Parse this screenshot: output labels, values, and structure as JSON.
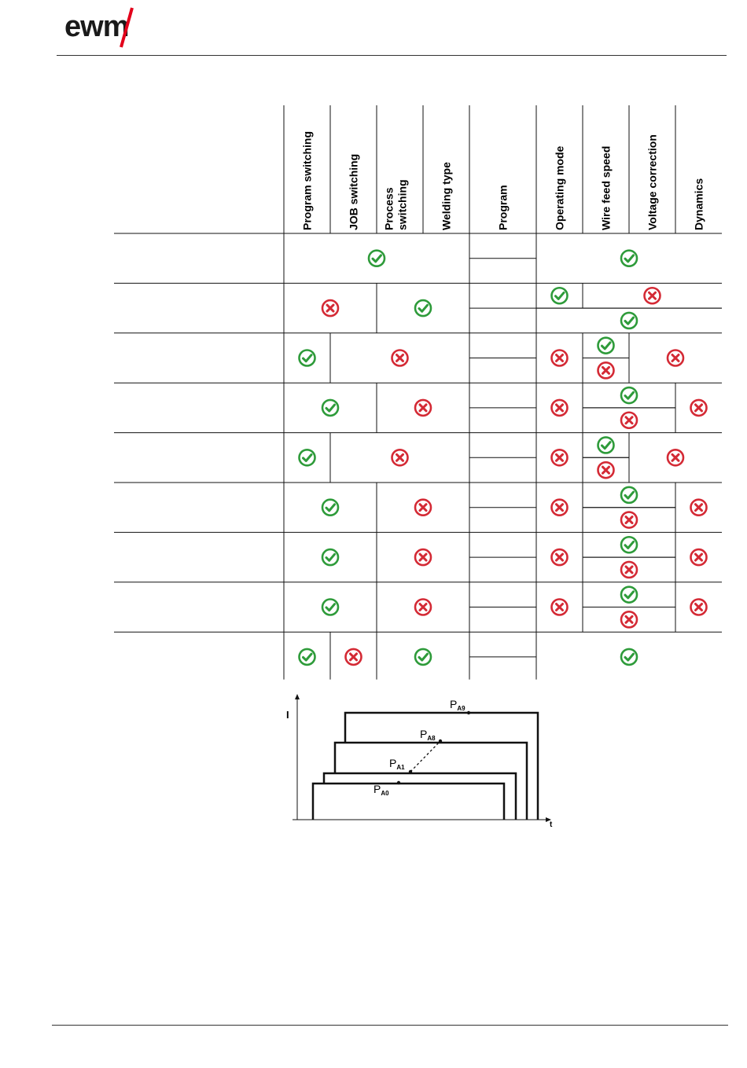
{
  "logo": {
    "text": "ewm",
    "accent_color": "#e3001b"
  },
  "columns": [
    "Program switching",
    "JOB switching",
    "Process switching",
    "Welding type",
    "Program",
    "Operating mode",
    "Wire feed speed",
    "Voltage correction",
    "Dynamics"
  ],
  "status_icons": {
    "allowed": "check-circle-icon",
    "blocked": "cross-circle-icon",
    "allowed_color": "#2e9b3a",
    "blocked_color": "#d42a35"
  },
  "matrix_rows": [
    {
      "cells": [
        {
          "from": 0,
          "to": 4,
          "state": "allowed"
        },
        {
          "from": 5,
          "to": 9,
          "state": "allowed"
        }
      ]
    },
    {
      "cells": [
        {
          "from": 0,
          "to": 2,
          "state": "blocked"
        },
        {
          "from": 2,
          "to": 4,
          "state": "allowed"
        },
        {
          "from": 5,
          "to": 6,
          "state": "allowed",
          "half": "top"
        },
        {
          "from": 6,
          "to": 9,
          "state": "blocked",
          "half": "top"
        },
        {
          "from": 5,
          "to": 9,
          "state": "allowed",
          "half": "bottom"
        }
      ]
    },
    {
      "cells": [
        {
          "from": 0,
          "to": 1,
          "state": "allowed"
        },
        {
          "from": 1,
          "to": 4,
          "state": "blocked"
        },
        {
          "from": 5,
          "to": 6,
          "state": "blocked"
        },
        {
          "from": 6,
          "to": 7,
          "state": "allowed",
          "half": "top"
        },
        {
          "from": 6,
          "to": 7,
          "state": "blocked",
          "half": "bottom"
        },
        {
          "from": 7,
          "to": 9,
          "state": "blocked"
        }
      ]
    },
    {
      "cells": [
        {
          "from": 0,
          "to": 2,
          "state": "allowed"
        },
        {
          "from": 2,
          "to": 4,
          "state": "blocked"
        },
        {
          "from": 5,
          "to": 6,
          "state": "blocked"
        },
        {
          "from": 6,
          "to": 8,
          "state": "allowed",
          "half": "top"
        },
        {
          "from": 6,
          "to": 8,
          "state": "blocked",
          "half": "bottom"
        },
        {
          "from": 8,
          "to": 9,
          "state": "blocked"
        }
      ]
    },
    {
      "cells": [
        {
          "from": 0,
          "to": 1,
          "state": "allowed"
        },
        {
          "from": 1,
          "to": 4,
          "state": "blocked"
        },
        {
          "from": 5,
          "to": 6,
          "state": "blocked"
        },
        {
          "from": 6,
          "to": 7,
          "state": "allowed",
          "half": "top"
        },
        {
          "from": 6,
          "to": 7,
          "state": "blocked",
          "half": "bottom"
        },
        {
          "from": 7,
          "to": 9,
          "state": "blocked"
        }
      ]
    },
    {
      "cells": [
        {
          "from": 0,
          "to": 2,
          "state": "allowed"
        },
        {
          "from": 2,
          "to": 4,
          "state": "blocked"
        },
        {
          "from": 5,
          "to": 6,
          "state": "blocked"
        },
        {
          "from": 6,
          "to": 8,
          "state": "allowed",
          "half": "top"
        },
        {
          "from": 6,
          "to": 8,
          "state": "blocked",
          "half": "bottom"
        },
        {
          "from": 8,
          "to": 9,
          "state": "blocked"
        }
      ]
    },
    {
      "cells": [
        {
          "from": 0,
          "to": 2,
          "state": "allowed"
        },
        {
          "from": 2,
          "to": 4,
          "state": "blocked"
        },
        {
          "from": 5,
          "to": 6,
          "state": "blocked"
        },
        {
          "from": 6,
          "to": 8,
          "state": "allowed",
          "half": "top"
        },
        {
          "from": 6,
          "to": 8,
          "state": "blocked",
          "half": "bottom"
        },
        {
          "from": 8,
          "to": 9,
          "state": "blocked"
        }
      ]
    },
    {
      "cells": [
        {
          "from": 0,
          "to": 2,
          "state": "allowed"
        },
        {
          "from": 2,
          "to": 4,
          "state": "blocked"
        },
        {
          "from": 5,
          "to": 6,
          "state": "blocked"
        },
        {
          "from": 6,
          "to": 8,
          "state": "allowed",
          "half": "top"
        },
        {
          "from": 6,
          "to": 8,
          "state": "blocked",
          "half": "bottom"
        },
        {
          "from": 8,
          "to": 9,
          "state": "blocked"
        }
      ]
    },
    {
      "cells": [
        {
          "from": 0,
          "to": 1,
          "state": "allowed"
        },
        {
          "from": 1,
          "to": 2,
          "state": "blocked"
        },
        {
          "from": 2,
          "to": 4,
          "state": "allowed"
        },
        {
          "from": 5,
          "to": 9,
          "state": "allowed"
        }
      ]
    }
  ],
  "diagram": {
    "y_axis_label": "I",
    "x_axis_label": "t",
    "points": [
      {
        "letter": "P",
        "sub": "A0"
      },
      {
        "letter": "P",
        "sub": "A1"
      },
      {
        "letter": "P",
        "sub": "A8"
      },
      {
        "letter": "P",
        "sub": "A9"
      }
    ]
  }
}
